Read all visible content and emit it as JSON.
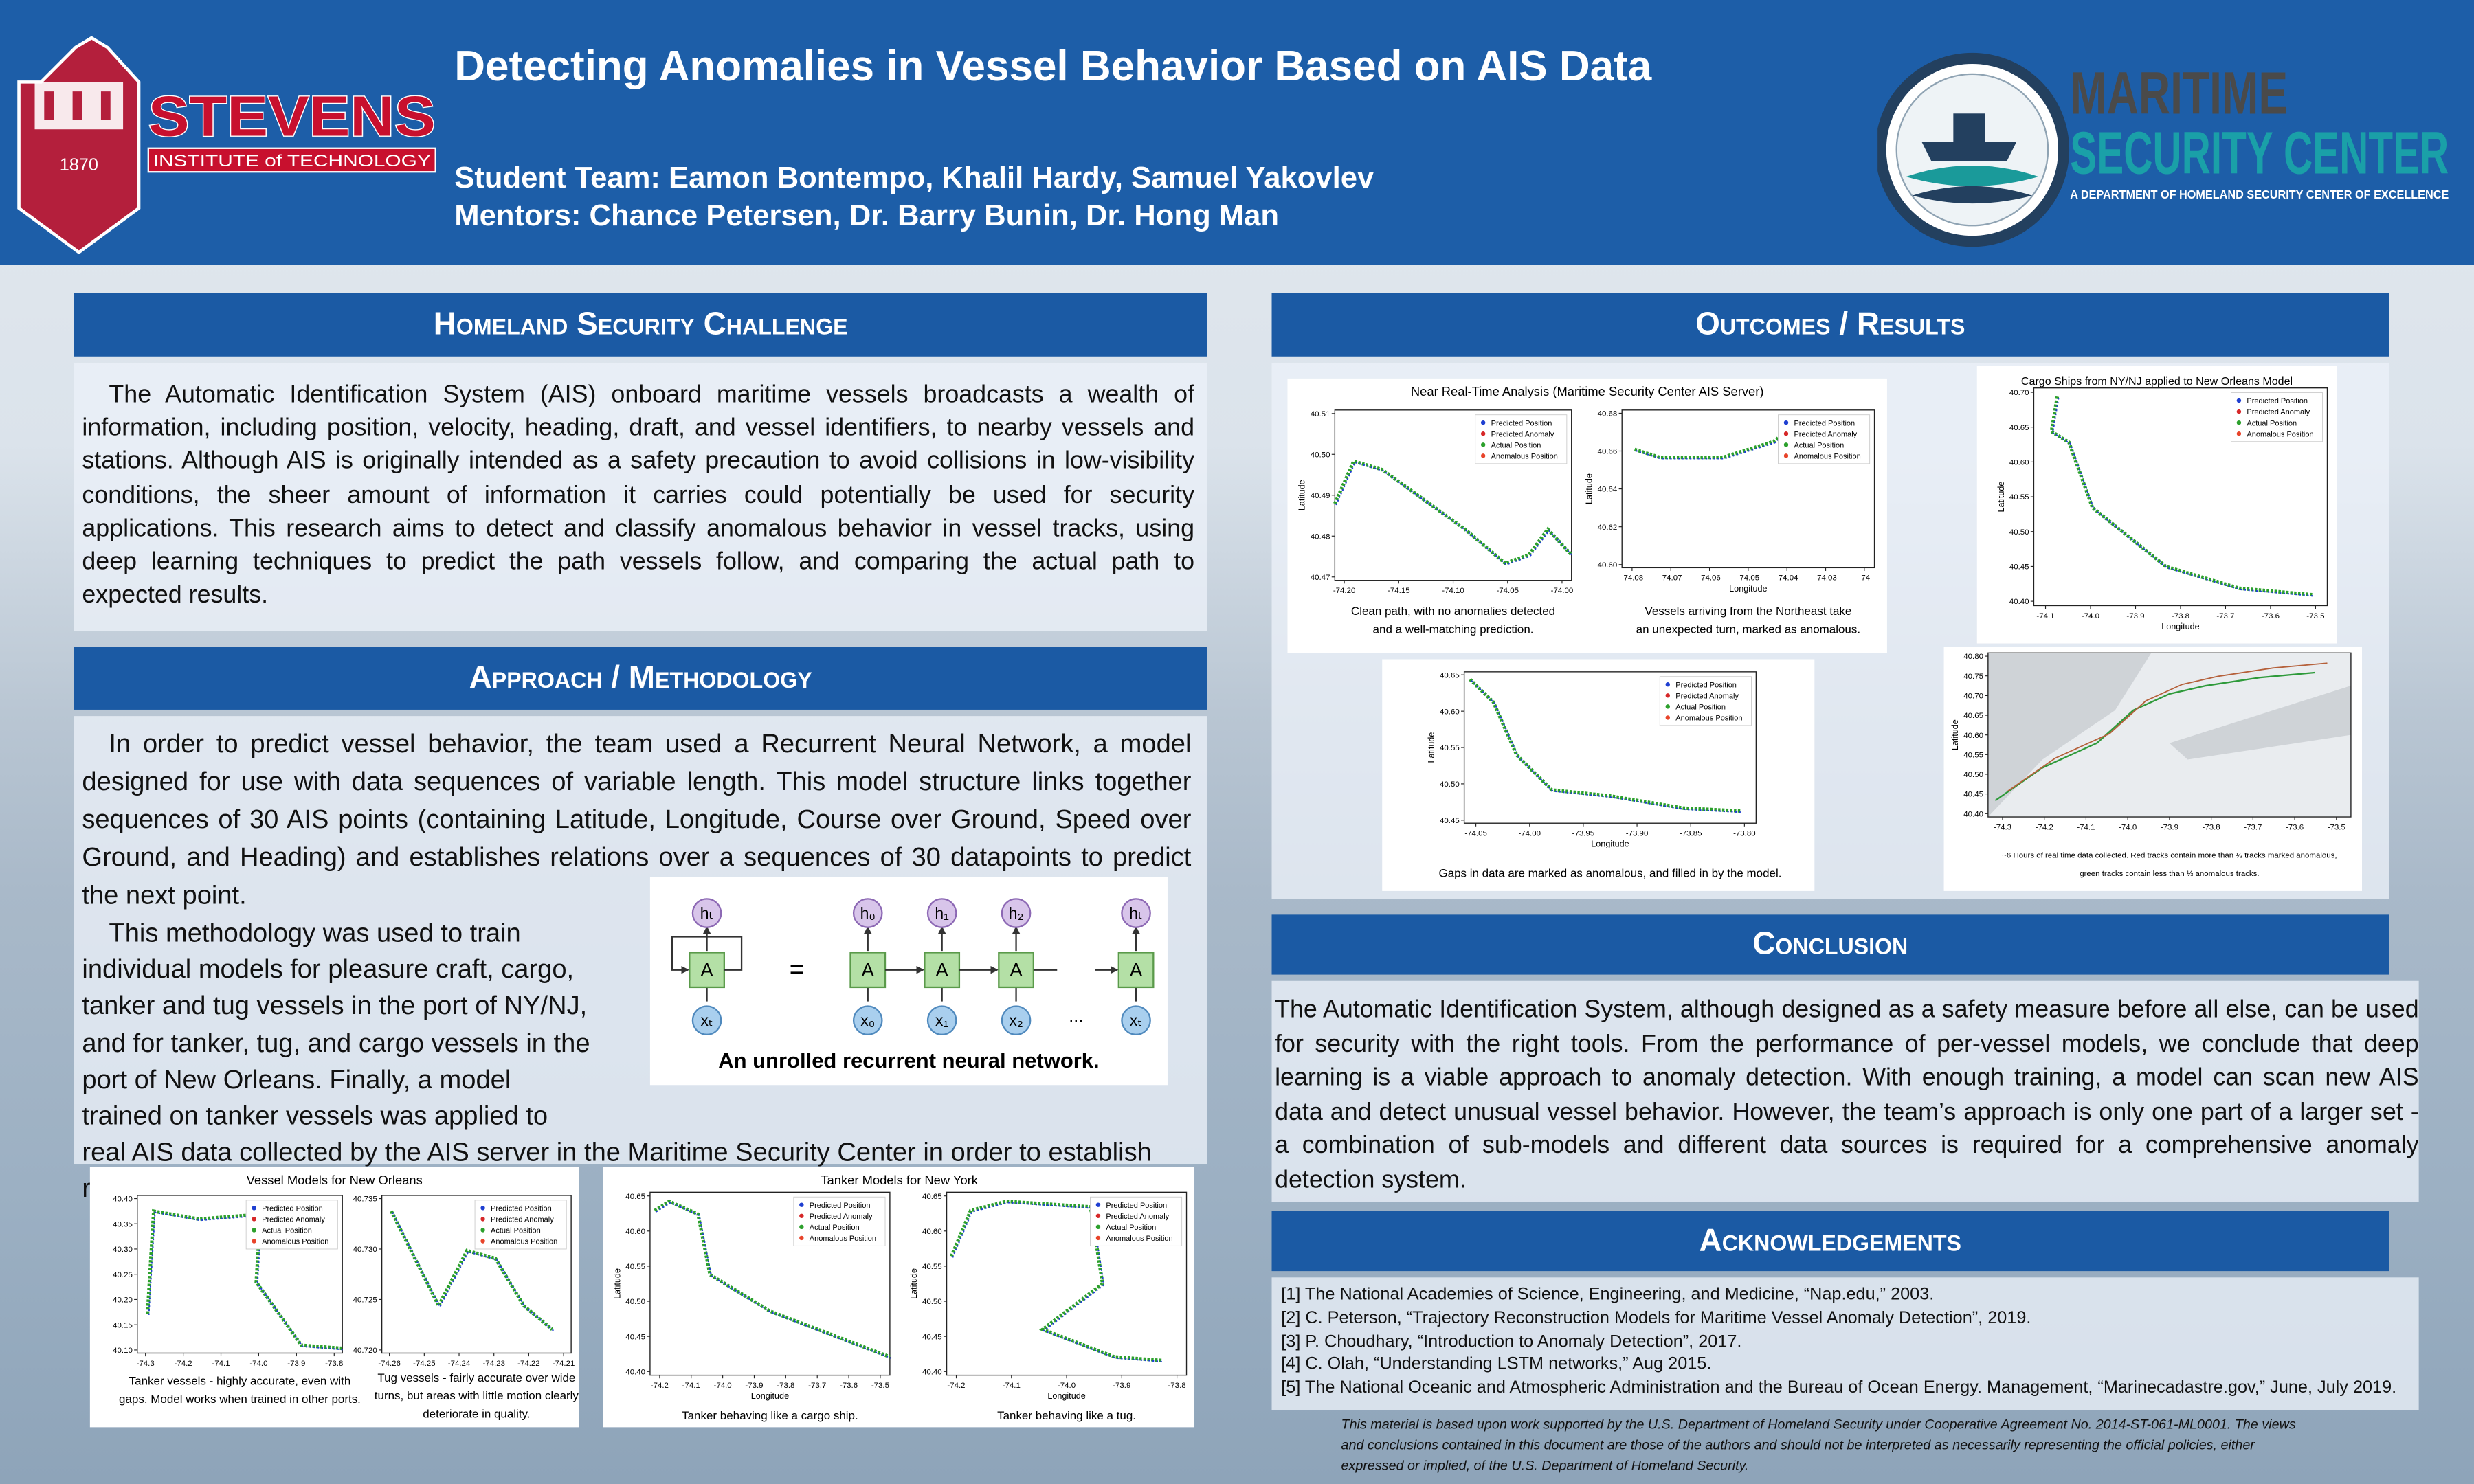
{
  "header": {
    "title": "Detecting Anomalies in Vessel Behavior Based on AIS Data",
    "team": "Student Team: Eamon Bontempo, Khalil Hardy, Samuel Yakovlev",
    "mentors": "Mentors: Chance Petersen, Dr. Barry Bunin, Dr. Hong Man"
  },
  "logos": {
    "stevens": {
      "name": "STEVENS",
      "sub": "INSTITUTE of TECHNOLOGY",
      "year": "1870"
    },
    "msc": {
      "line1": "MARITIME",
      "line2": "SECURITY CENTER",
      "tagline": "A DEPARTMENT OF HOMELAND SECURITY CENTER OF EXCELLENCE"
    }
  },
  "sections": {
    "challenge": {
      "heading": "Homeland Security Challenge",
      "text": "The Automatic Identification System (AIS) onboard maritime vessels broadcasts a wealth of information, including position, velocity, heading, draft, and vessel identifiers, to nearby vessels and stations. Although AIS is originally intended as a safety precaution to avoid collisions in low-visibility conditions, the sheer amount of information it carries could potentially be used for security applications. This research aims to detect and classify anomalous behavior in vessel tracks, using deep learning techniques to predict the path vessels follow, and comparing the actual path to expected results."
    },
    "approach": {
      "heading": "Approach / Methodology",
      "paragraphs": [
        "In order to predict vessel behavior, the team used a Recurrent Neural Network, a model designed for use with data sequences of variable length. This model structure links together sequences of 30 AIS points (containing Latitude, Longitude, Course over Ground, Speed over Ground, and Heading) and establishes relations over a sequences of 30 datapoints to predict the next point.",
        "This methodology was used to train individual models for pleasure craft, cargo, tanker and tug vessels in the port of NY/NJ, and for tanker, tug, and cargo vessels in the port of New Orleans. Finally, a model trained on tanker vessels was applied to real AIS data collected by the AIS server in the Maritime Security Center in order to establish real-world usefulness of this approach."
      ]
    },
    "outcomes": {
      "heading": "Outcomes / Results"
    },
    "conclusion": {
      "heading": "Conclusion",
      "text": "The Automatic Identification System, although designed as a safety measure before all else, can be used for security with the right tools. From the performance of per-vessel models, we conclude that deep learning is a viable approach to anomaly detection. With enough training, a model can scan new AIS data and detect unusual vessel behavior. However, the team’s approach is only one part of a larger set - a combination of sub-models and different data sources is required for a comprehensive anomaly detection system."
    },
    "acknowledgements": {
      "heading": "Acknowledgements",
      "references": [
        "[1] The National Academies of Science, Engineering, and Medicine, “Nap.edu,” 2003.",
        "[2] C. Peterson, “Trajectory Reconstruction Models for Maritime Vessel Anomaly Detection”, 2019.",
        "[3] P. Choudhary, “Introduction to Anomaly Detection”, 2017.",
        "[4] C. Olah, “Understanding LSTM networks,” Aug 2015.",
        "[5] The National Oceanic and Atmospheric Administration and the Bureau of Ocean Energy. Management, “Marinecadastre.gov,” June, July 2019."
      ]
    }
  },
  "rnn": {
    "rolled": {
      "h": "hₜ",
      "a": "A",
      "x": "xₜ"
    },
    "equals": "=",
    "cells": [
      {
        "h": "h₀",
        "a": "A",
        "x": "x₀"
      },
      {
        "h": "h₁",
        "a": "A",
        "x": "x₁"
      },
      {
        "h": "h₂",
        "a": "A",
        "x": "x₂"
      },
      {
        "h": "hₜ",
        "a": "A",
        "x": "xₜ"
      }
    ],
    "ellipsis": "...",
    "caption": "An unrolled recurrent neural network."
  },
  "figures": [
    {
      "title": "Near Real-Time Analysis (Maritime Security Center AIS Server)",
      "panels": [
        {
          "ylabel": "Latitude",
          "xticks": [
            "-74.20",
            "-74.15",
            "-74.10",
            "-74.05",
            "-74.00"
          ],
          "yticks": [
            "40.51",
            "40.50",
            "40.49",
            "40.48",
            "40.47"
          ],
          "legend": [
            {
              "label": "Predicted Position",
              "color": "#1f3fd1"
            },
            {
              "label": "Predicted Anomaly",
              "color": "#d62728"
            },
            {
              "label": "Actual Position",
              "color": "#2ca02c"
            },
            {
              "label": "Anomalous Position",
              "color": "#e8442a"
            }
          ],
          "caption": [
            "Clean path, with no anomalies detected",
            "and a well-matching prediction."
          ]
        },
        {
          "xlabel": "Longitude",
          "ylabel": "Latitude",
          "xticks": [
            "-74.08",
            "-74.07",
            "-74.06",
            "-74.05",
            "-74.04",
            "-74.03",
            "-74"
          ],
          "yticks": [
            "40.68",
            "40.66",
            "40.64",
            "40.62",
            "40.60"
          ],
          "legend": [
            {
              "label": "Predicted Position",
              "color": "#1f3fd1"
            },
            {
              "label": "Predicted Anomaly",
              "color": "#d62728"
            },
            {
              "label": "Actual Position",
              "color": "#2ca02c"
            },
            {
              "label": "Anomalous Position",
              "color": "#e8442a"
            }
          ],
          "caption": [
            "Vessels arriving from the Northeast take",
            "an unexpected turn, marked as anomalous."
          ]
        }
      ]
    },
    {
      "panels": [
        {
          "xlabel": "Longitude",
          "ylabel": "Latitude",
          "xticks": [
            "-74.05",
            "-74.00",
            "-73.95",
            "-73.90",
            "-73.85",
            "-73.80"
          ],
          "yticks": [
            "40.65",
            "40.60",
            "40.55",
            "40.50",
            "40.45"
          ],
          "legend": [
            {
              "label": "Predicted Position",
              "color": "#1f3fd1"
            },
            {
              "label": "Predicted Anomaly",
              "color": "#d62728"
            },
            {
              "label": "Actual Position",
              "color": "#2ca02c"
            },
            {
              "label": "Anomalous Position",
              "color": "#e8442a"
            }
          ],
          "caption": [
            "Gaps in data are marked as anomalous, and filled in by the model."
          ]
        }
      ]
    },
    {
      "title": "Cargo Ships from NY/NJ applied to New Orleans Model",
      "panels": [
        {
          "xlabel": "Longitude",
          "ylabel": "Latitude",
          "xticks": [
            "-74.1",
            "-74.0",
            "-73.9",
            "-73.8",
            "-73.7",
            "-73.6",
            "-73.5"
          ],
          "yticks": [
            "40.70",
            "40.65",
            "40.60",
            "40.55",
            "40.50",
            "40.45",
            "40.40"
          ],
          "legend": [
            {
              "label": "Predicted Position",
              "color": "#1f3fd1"
            },
            {
              "label": "Predicted Anomaly",
              "color": "#d62728"
            },
            {
              "label": "Actual Position",
              "color": "#2ca02c"
            },
            {
              "label": "Anomalous Position",
              "color": "#e8442a"
            }
          ]
        }
      ]
    },
    {
      "panels": [
        {
          "ylabel": "Latitude",
          "xticks": [
            "-74.3",
            "-74.2",
            "-74.1",
            "-74.0",
            "-73.9",
            "-73.8",
            "-73.7",
            "-73.6",
            "-73.5"
          ],
          "yticks": [
            "40.80",
            "40.75",
            "40.70",
            "40.65",
            "40.60",
            "40.55",
            "40.50",
            "40.45",
            "40.40"
          ],
          "caption": [
            "~6 Hours of real time data collected. Red tracks contain more than ⅓ tracks marked anomalous,",
            "green tracks contain less than ⅓ anomalous tracks."
          ]
        }
      ]
    },
    {
      "title": "Vessel Models for New Orleans",
      "panels": [
        {
          "xticks": [
            "-74.3",
            "-74.2",
            "-74.1",
            "-74.0",
            "-73.9",
            "-73.8"
          ],
          "yticks": [
            "40.40",
            "40.35",
            "40.30",
            "40.25",
            "40.20",
            "40.15",
            "40.10"
          ],
          "legend": [
            {
              "label": "Predicted Position",
              "color": "#1f3fd1"
            },
            {
              "label": "Predicted Anomaly",
              "color": "#d62728"
            },
            {
              "label": "Actual Position",
              "color": "#2ca02c"
            },
            {
              "label": "Anomalous Position",
              "color": "#e8442a"
            }
          ],
          "caption": [
            "Tanker vessels - highly accurate, even with",
            "gaps. Model works when trained in other ports."
          ]
        },
        {
          "xticks": [
            "-74.26",
            "-74.25",
            "-74.24",
            "-74.23",
            "-74.22",
            "-74.21"
          ],
          "yticks": [
            "40.735",
            "40.730",
            "40.725",
            "40.720"
          ],
          "legend": [
            {
              "label": "Predicted Position",
              "color": "#1f3fd1"
            },
            {
              "label": "Predicted Anomaly",
              "color": "#d62728"
            },
            {
              "label": "Actual Position",
              "color": "#2ca02c"
            },
            {
              "label": "Anomalous Position",
              "color": "#e8442a"
            }
          ],
          "caption": [
            "Tug vessels - fairly accurate over wide",
            "turns, but areas with little motion clearly",
            "deteriorate in quality."
          ]
        }
      ]
    },
    {
      "title": "Tanker Models for New York",
      "panels": [
        {
          "xlabel": "Longitude",
          "ylabel": "Latitude",
          "xticks": [
            "-74.2",
            "-74.1",
            "-74.0",
            "-73.9",
            "-73.8",
            "-73.7",
            "-73.6",
            "-73.5"
          ],
          "yticks": [
            "40.65",
            "40.60",
            "40.55",
            "40.50",
            "40.45",
            "40.40"
          ],
          "legend": [
            {
              "label": "Predicted Position",
              "color": "#1f3fd1"
            },
            {
              "label": "Predicted Anomaly",
              "color": "#d62728"
            },
            {
              "label": "Actual Position",
              "color": "#2ca02c"
            },
            {
              "label": "Anomalous Position",
              "color": "#e8442a"
            }
          ],
          "caption": [
            "Tanker behaving like a cargo ship."
          ]
        },
        {
          "xlabel": "Longitude",
          "ylabel": "Latitude",
          "xticks": [
            "-74.2",
            "-74.1",
            "-74.0",
            "-73.9",
            "-73.8"
          ],
          "yticks": [
            "40.65",
            "40.60",
            "40.55",
            "40.50",
            "40.45",
            "40.40"
          ],
          "legend": [
            {
              "label": "Predicted Position",
              "color": "#1f3fd1"
            },
            {
              "label": "Predicted Anomaly",
              "color": "#d62728"
            },
            {
              "label": "Actual Position",
              "color": "#2ca02c"
            },
            {
              "label": "Anomalous Position",
              "color": "#e8442a"
            }
          ],
          "caption": [
            "Tanker behaving like a tug."
          ]
        }
      ]
    }
  ],
  "disclaimer": [
    "This material is based upon work supported by the U.S. Department of Homeland Security under Cooperative Agreement No. 2014-ST-061-ML0001. The views",
    "and conclusions contained in this document are those of the authors and should not be interpreted as necessarily representing the official policies, either",
    "expressed or implied, of the U.S. Department of Homeland Security."
  ]
}
